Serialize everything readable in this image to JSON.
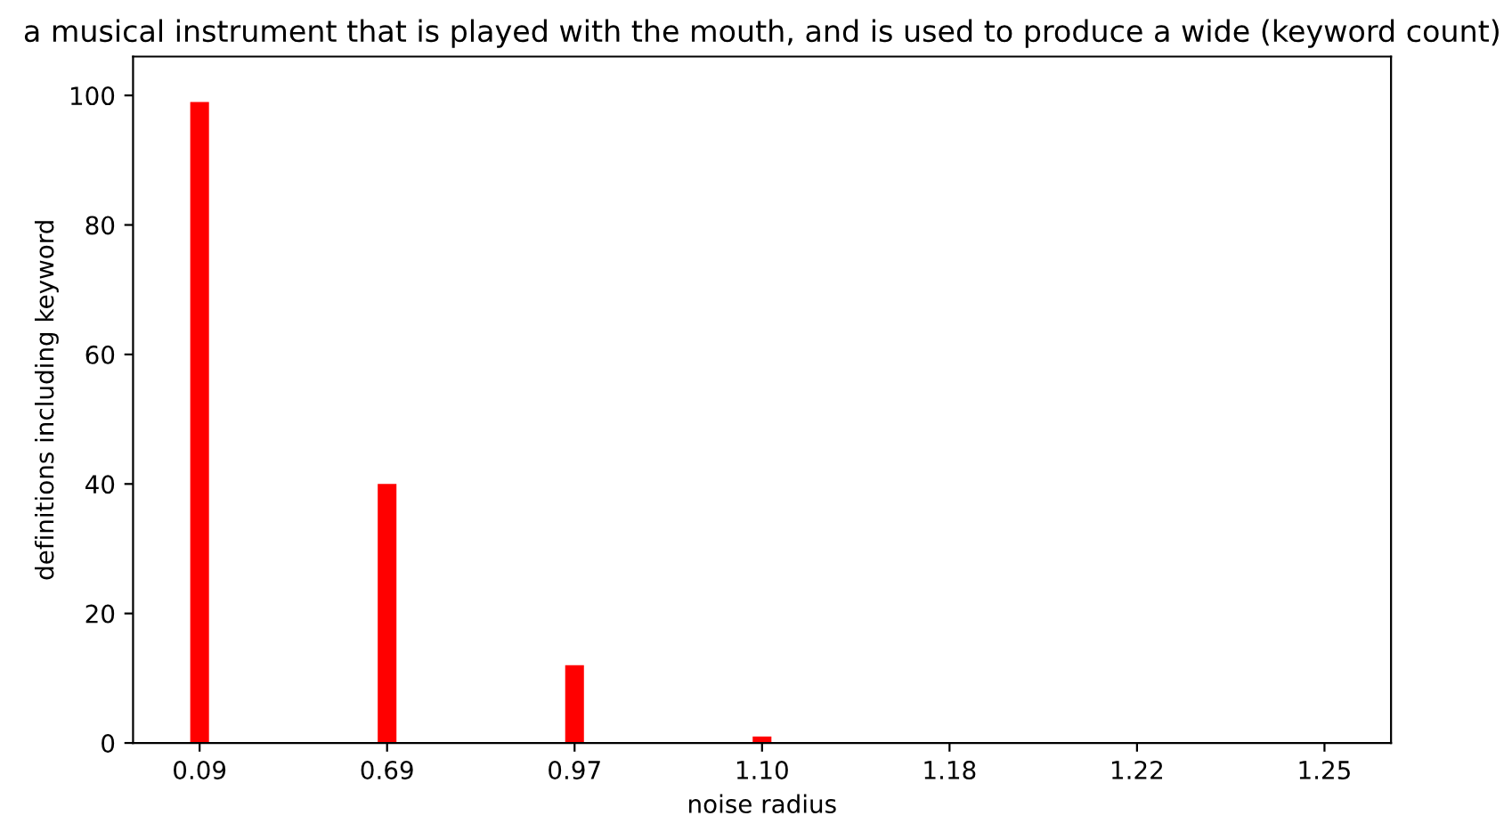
{
  "chart_data": {
    "type": "bar",
    "title": "a musical instrument that is played with the mouth, and is used to produce a wide (keyword count)",
    "xlabel": "noise radius",
    "ylabel": "definitions including keyword",
    "categories": [
      "0.09",
      "0.69",
      "0.97",
      "1.10",
      "1.18",
      "1.22",
      "1.25"
    ],
    "values": [
      99,
      40,
      12,
      1,
      0,
      0,
      0
    ],
    "color": "#ff0000",
    "ylim": [
      0,
      106
    ],
    "yticks": [
      0,
      20,
      40,
      60,
      80,
      100
    ],
    "grid": false,
    "legend": false
  }
}
